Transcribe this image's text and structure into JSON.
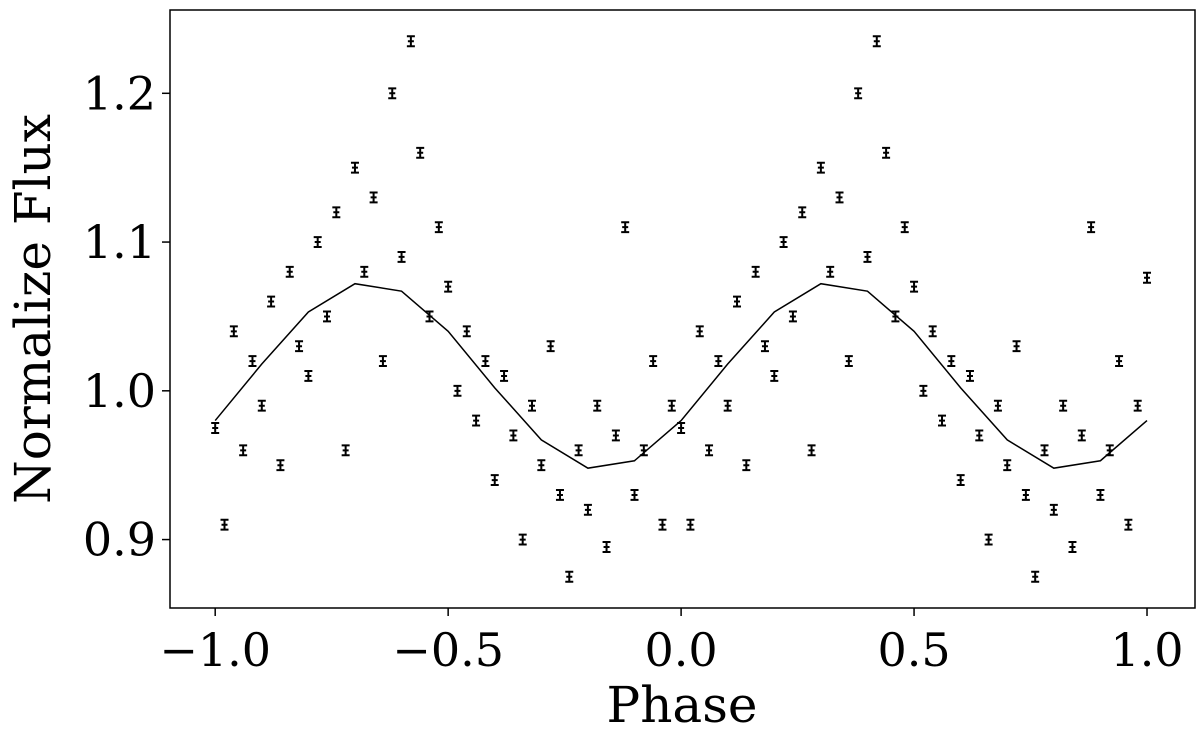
{
  "chart_data": {
    "type": "scatter",
    "xlabel": "Phase",
    "ylabel": "Normalize Flux",
    "xlim": [
      -1.097,
      1.103
    ],
    "ylim": [
      0.854,
      1.256
    ],
    "xticks": [
      {
        "value": -1.0,
        "label": "−1.0"
      },
      {
        "value": -0.5,
        "label": "−0.5"
      },
      {
        "value": 0.0,
        "label": "0.0"
      },
      0.5,
      {
        "value": 1.0,
        "label": "1.0"
      }
    ],
    "yticks": [
      0.9,
      {
        "value": 1.0,
        "label": "1.0"
      },
      1.1,
      1.2
    ],
    "series": [
      {
        "type": "scatter",
        "color": "#000000",
        "yerr": 0.002,
        "x": [
          -1.0,
          -0.98,
          -0.96,
          -0.94,
          -0.92,
          -0.9,
          -0.88,
          -0.86,
          -0.84,
          -0.82,
          -0.8,
          -0.78,
          -0.76,
          -0.74,
          -0.72,
          -0.7,
          -0.68,
          -0.66,
          -0.64,
          -0.62,
          -0.6,
          -0.58,
          -0.56,
          -0.54,
          -0.52,
          -0.5,
          -0.48,
          -0.46,
          -0.44,
          -0.42,
          -0.4,
          -0.38,
          -0.36,
          -0.34,
          -0.32,
          -0.3,
          -0.28,
          -0.26,
          -0.24,
          -0.22,
          -0.2,
          -0.18,
          -0.16,
          -0.14,
          -0.12,
          -0.1,
          -0.08,
          -0.06,
          -0.04,
          -0.02,
          0.0,
          0.02,
          0.04,
          0.06,
          0.08,
          0.1,
          0.12,
          0.14,
          0.16,
          0.18,
          0.2,
          0.22,
          0.24,
          0.26,
          0.28,
          0.3,
          0.32,
          0.34,
          0.36,
          0.38,
          0.4,
          0.42,
          0.44,
          0.46,
          0.48,
          0.5,
          0.52,
          0.54,
          0.56,
          0.58,
          0.6,
          0.62,
          0.64,
          0.66,
          0.68,
          0.7,
          0.72,
          0.74,
          0.76,
          0.78,
          0.8,
          0.82,
          0.84,
          0.86,
          0.88,
          0.9,
          0.92,
          0.94,
          0.96,
          0.98,
          1.0
        ],
        "values": [
          0.975,
          0.91,
          1.04,
          0.96,
          1.02,
          0.99,
          1.06,
          0.95,
          1.08,
          1.03,
          1.01,
          1.1,
          1.05,
          1.12,
          0.96,
          1.15,
          1.08,
          1.13,
          1.02,
          1.2,
          1.09,
          1.235,
          1.16,
          1.05,
          1.11,
          1.07,
          1.0,
          1.04,
          0.98,
          1.02,
          0.94,
          1.01,
          0.97,
          0.9,
          0.99,
          0.95,
          1.03,
          0.93,
          0.875,
          0.96,
          0.92,
          0.99,
          0.895,
          0.97,
          1.11,
          0.93,
          0.96,
          1.02,
          0.91,
          0.99,
          0.975,
          0.91,
          1.04,
          0.96,
          1.02,
          0.99,
          1.06,
          0.95,
          1.08,
          1.03,
          1.01,
          1.1,
          1.05,
          1.12,
          0.96,
          1.15,
          1.08,
          1.13,
          1.02,
          1.2,
          1.09,
          1.235,
          1.16,
          1.05,
          1.11,
          1.07,
          1.0,
          1.04,
          0.98,
          1.02,
          0.94,
          1.01,
          0.97,
          0.9,
          0.99,
          0.95,
          1.03,
          0.93,
          0.875,
          0.96,
          0.92,
          0.99,
          0.895,
          0.97,
          1.11,
          0.93,
          0.96,
          1.02,
          0.91,
          0.99,
          1.076
        ]
      },
      {
        "type": "line",
        "color": "#000000",
        "x": [
          -1.0,
          -0.9,
          -0.8,
          -0.7,
          -0.6,
          -0.5,
          -0.4,
          -0.3,
          -0.2,
          -0.1,
          0.0,
          0.1,
          0.2,
          0.3,
          0.4,
          0.5,
          0.6,
          0.7,
          0.8,
          0.9,
          1.0
        ],
        "values": [
          0.98,
          1.018,
          1.053,
          1.072,
          1.067,
          1.04,
          1.002,
          0.967,
          0.948,
          0.953,
          0.98,
          1.018,
          1.053,
          1.072,
          1.067,
          1.04,
          1.002,
          0.967,
          0.948,
          0.953,
          0.98
        ]
      }
    ]
  }
}
